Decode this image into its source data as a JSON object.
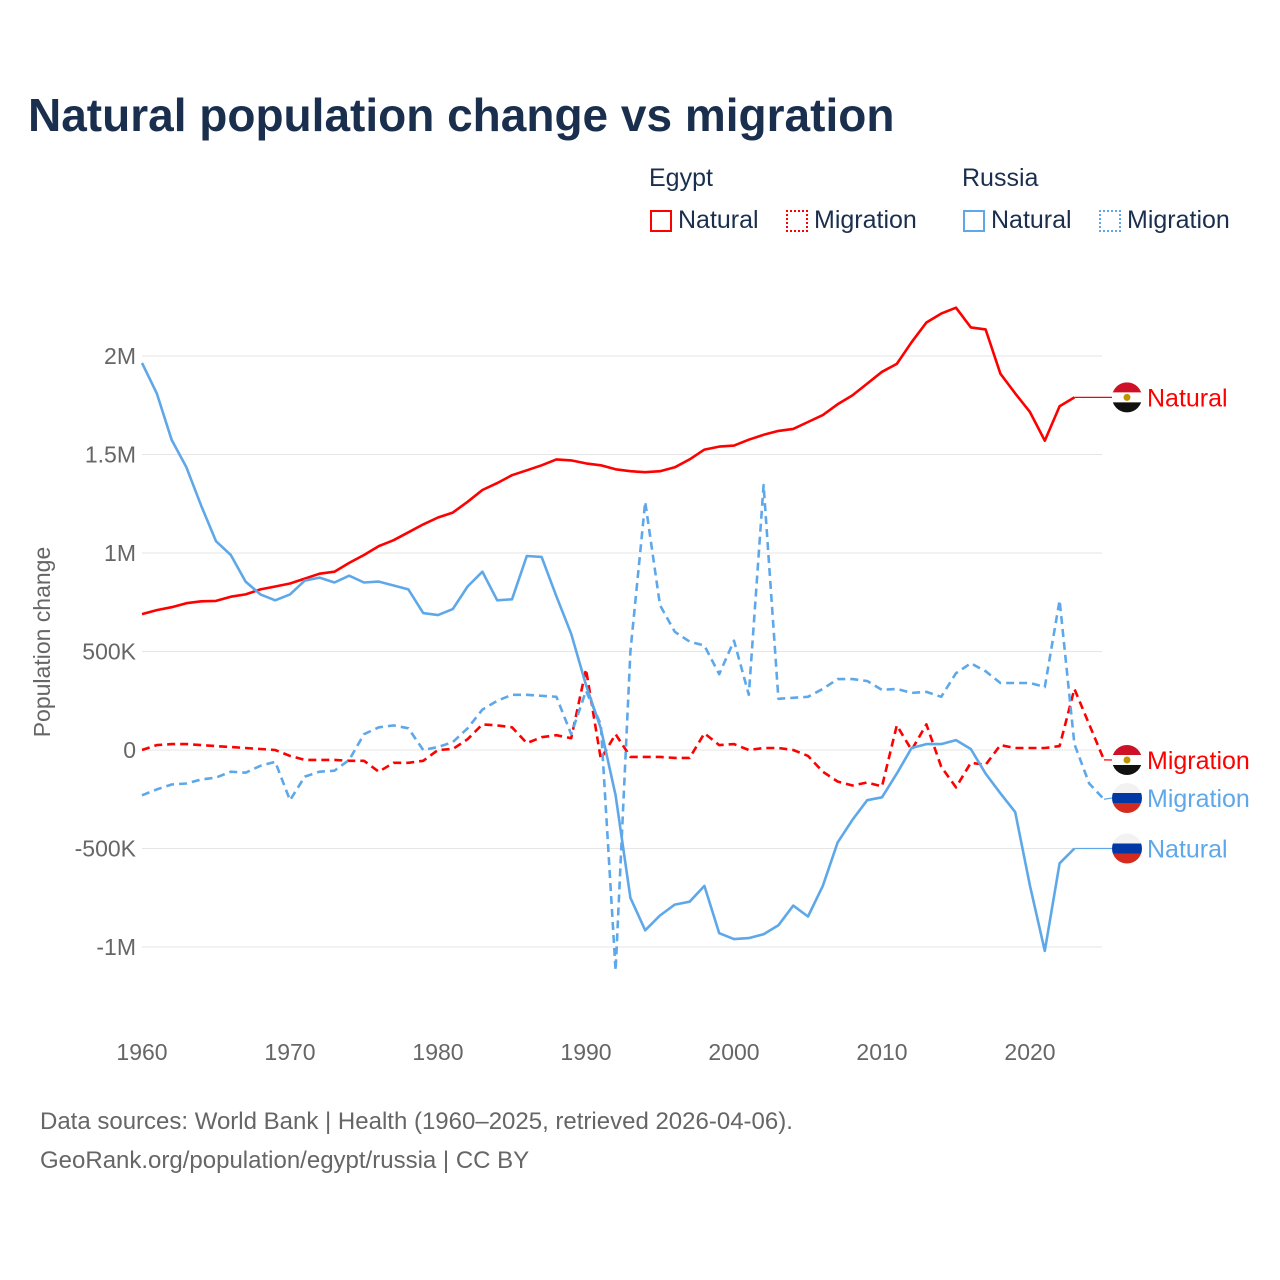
{
  "title": "Natural population change vs migration",
  "legend": {
    "groups": [
      {
        "name": "Egypt",
        "color": "#ff0000",
        "items": [
          "Natural",
          "Migration"
        ]
      },
      {
        "name": "Russia",
        "color": "#5ea8ea",
        "items": [
          "Natural",
          "Migration"
        ]
      }
    ]
  },
  "source": {
    "line1": "Data sources: World Bank | Health (1960–2025, retrieved 2026-04-06).",
    "line2": "GeoRank.org/population/egypt/russia | CC BY"
  },
  "chart_data": {
    "type": "line",
    "title": "Natural population change vs migration",
    "xlabel": "",
    "ylabel": "Population change",
    "xlim": [
      1960,
      2025
    ],
    "ylim": [
      -1200000,
      2300000
    ],
    "xticks": [
      1960,
      1970,
      1980,
      1990,
      2000,
      2010,
      2020
    ],
    "xtick_labels": [
      "1960",
      "1970",
      "1980",
      "1990",
      "2000",
      "2010",
      "2020"
    ],
    "yticks": [
      -1000000,
      -500000,
      0,
      500000,
      1000000,
      1500000,
      2000000
    ],
    "ytick_labels": [
      "-1M",
      "-500K",
      "0",
      "500K",
      "1M",
      "1.5M",
      "2M"
    ],
    "grid": true,
    "series": [
      {
        "name": "Egypt Natural",
        "label": "Natural",
        "color": "#ff0000",
        "dash": false,
        "flag": "egypt",
        "start": 1960,
        "values": [
          690000,
          710000,
          725000,
          745000,
          755000,
          757000,
          778000,
          790000,
          815000,
          830000,
          845000,
          870000,
          895000,
          905000,
          950000,
          990000,
          1035000,
          1065000,
          1105000,
          1145000,
          1180000,
          1205000,
          1260000,
          1320000,
          1355000,
          1395000,
          1420000,
          1445000,
          1475000,
          1470000,
          1455000,
          1445000,
          1425000,
          1415000,
          1410000,
          1415000,
          1435000,
          1475000,
          1525000,
          1540000,
          1545000,
          1575000,
          1600000,
          1620000,
          1630000,
          1665000,
          1700000,
          1755000,
          1800000,
          1860000,
          1920000,
          1960000,
          2070000,
          2170000,
          2215000,
          2245000,
          2145000,
          2135000,
          1910000,
          1810000,
          1715000,
          1570000,
          1745000,
          1790000
        ]
      },
      {
        "name": "Egypt Migration",
        "label": "Migration",
        "color": "#ff0000",
        "dash": true,
        "flag": "egypt",
        "start": 1960,
        "values": [
          0,
          25000,
          30000,
          30000,
          25000,
          20000,
          15000,
          10000,
          5000,
          0,
          -30000,
          -50000,
          -50000,
          -50000,
          -55000,
          -55000,
          -110000,
          -65000,
          -65000,
          -55000,
          0,
          5000,
          55000,
          130000,
          125000,
          115000,
          35000,
          65000,
          75000,
          60000,
          410000,
          -45000,
          80000,
          -35000,
          -35000,
          -35000,
          -40000,
          -40000,
          85000,
          25000,
          30000,
          0,
          10000,
          10000,
          0,
          -30000,
          -110000,
          -160000,
          -180000,
          -165000,
          -185000,
          125000,
          0,
          130000,
          -85000,
          -190000,
          -65000,
          -75000,
          25000,
          10000,
          10000,
          10000,
          20000,
          310000,
          130000,
          -50000
        ]
      },
      {
        "name": "Russia Migration",
        "label": "Migration",
        "color": "#5ea8ea",
        "dash": true,
        "flag": "russia",
        "start": 1960,
        "values": [
          -230000,
          -200000,
          -175000,
          -170000,
          -150000,
          -140000,
          -110000,
          -115000,
          -80000,
          -60000,
          -255000,
          -135000,
          -110000,
          -105000,
          -50000,
          80000,
          115000,
          125000,
          110000,
          0,
          15000,
          40000,
          110000,
          205000,
          250000,
          280000,
          280000,
          275000,
          270000,
          80000,
          300000,
          130000,
          -1120000,
          500000,
          1260000,
          735000,
          600000,
          550000,
          530000,
          385000,
          555000,
          280000,
          1345000,
          260000,
          265000,
          270000,
          310000,
          360000,
          360000,
          350000,
          305000,
          310000,
          290000,
          295000,
          270000,
          390000,
          440000,
          400000,
          340000,
          340000,
          340000,
          320000,
          760000,
          30000,
          -170000,
          -250000
        ]
      },
      {
        "name": "Russia Natural",
        "label": "Natural",
        "color": "#5ea8ea",
        "dash": false,
        "flag": "russia",
        "start": 1960,
        "values": [
          1965000,
          1810000,
          1575000,
          1435000,
          1240000,
          1060000,
          990000,
          855000,
          790000,
          760000,
          790000,
          860000,
          875000,
          850000,
          885000,
          850000,
          855000,
          835000,
          815000,
          695000,
          685000,
          715000,
          830000,
          905000,
          760000,
          765000,
          985000,
          980000,
          780000,
          590000,
          330000,
          110000,
          -230000,
          -750000,
          -915000,
          -840000,
          -785000,
          -770000,
          -690000,
          -930000,
          -960000,
          -955000,
          -935000,
          -890000,
          -790000,
          -845000,
          -690000,
          -470000,
          -355000,
          -255000,
          -240000,
          -120000,
          10000,
          30000,
          30000,
          50000,
          5000,
          -120000,
          -220000,
          -315000,
          -690000,
          -1020000,
          -575000,
          -500000
        ]
      }
    ]
  }
}
